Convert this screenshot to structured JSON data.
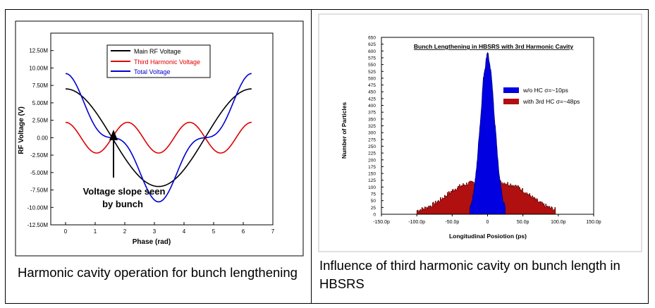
{
  "captions": {
    "left": "Harmonic cavity operation for bunch lengthening",
    "right": "Influence of third harmonic cavity on bunch length in HBSRS"
  },
  "colors": {
    "main": "#000000",
    "third": "#e00000",
    "total": "#0000d0",
    "blue_hist": "#0000e0",
    "red_hist": "#b01010"
  },
  "chart_data": [
    {
      "type": "line",
      "title": "",
      "xlabel": "Phase (rad)",
      "ylabel": "RF Voltage (V)",
      "xlim": [
        -0.5,
        7
      ],
      "ylim": [
        -12500000,
        15000000
      ],
      "xticks": [
        "0",
        "1",
        "2",
        "3",
        "4",
        "5",
        "6",
        "7"
      ],
      "xtick_values": [
        0,
        1,
        2,
        3,
        4,
        5,
        6,
        7
      ],
      "yticks": [
        "-12.50M",
        "-10.00M",
        "-7.50M",
        "-5.00M",
        "-2.50M",
        "0.00",
        "2.50M",
        "5.00M",
        "7.50M",
        "10.00M",
        "12.50M"
      ],
      "ytick_values": [
        -12500000,
        -10000000,
        -7500000,
        -5000000,
        -2500000,
        0,
        2500000,
        5000000,
        7500000,
        10000000,
        12500000
      ],
      "series": [
        {
          "name": "Main RF Voltage",
          "color": "#000000",
          "formula": "7.0e6*cos(x)",
          "amplitude": 7000000
        },
        {
          "name": "Third Harmonic Voltage",
          "color": "#e00000",
          "formula": "2.2e6*cos(3x)",
          "amplitude": 2200000
        },
        {
          "name": "Total Voltage",
          "color": "#0000d0",
          "formula": "7.0e6*cos(x)+2.2e6*cos(3x)"
        }
      ],
      "x_range": [
        0,
        6.2832
      ],
      "annotation": {
        "line1": "Voltage slope seen",
        "line2": "by bunch",
        "x": 1.55
      }
    },
    {
      "type": "histogram",
      "title": "Bunch Lengthening in HBSRS with 3rd Harmonic Cavity",
      "xlabel": "Longitudinal Posiotion (ps)",
      "ylabel": "Number of Particles",
      "xlim": [
        -150,
        150
      ],
      "ylim": [
        0,
        650
      ],
      "xticks": [
        "-150.0p",
        "-100.0p",
        "-50.0p",
        "0",
        "50.0p",
        "100.0p",
        "150.0p"
      ],
      "xtick_values": [
        -150,
        -100,
        -50,
        0,
        50,
        100,
        150
      ],
      "yticks": [
        "0",
        "25",
        "50",
        "75",
        "100",
        "125",
        "150",
        "175",
        "200",
        "225",
        "250",
        "275",
        "300",
        "325",
        "350",
        "375",
        "400",
        "425",
        "450",
        "475",
        "500",
        "525",
        "550",
        "575",
        "600",
        "625",
        "650"
      ],
      "ytick_values": [
        0,
        25,
        50,
        75,
        100,
        125,
        150,
        175,
        200,
        225,
        250,
        275,
        300,
        325,
        350,
        375,
        400,
        425,
        450,
        475,
        500,
        525,
        550,
        575,
        600,
        625,
        650
      ],
      "series": [
        {
          "name": "w/o HC σ=~10ps",
          "color": "#0000e0",
          "sigma_ps": 10,
          "peak": 585,
          "x_range": [
            -25,
            25
          ]
        },
        {
          "name": "with 3rd HC σ=~48ps",
          "color": "#b01010",
          "sigma_ps": 48,
          "peak": 120,
          "x_range": [
            -100,
            95
          ]
        }
      ]
    }
  ]
}
